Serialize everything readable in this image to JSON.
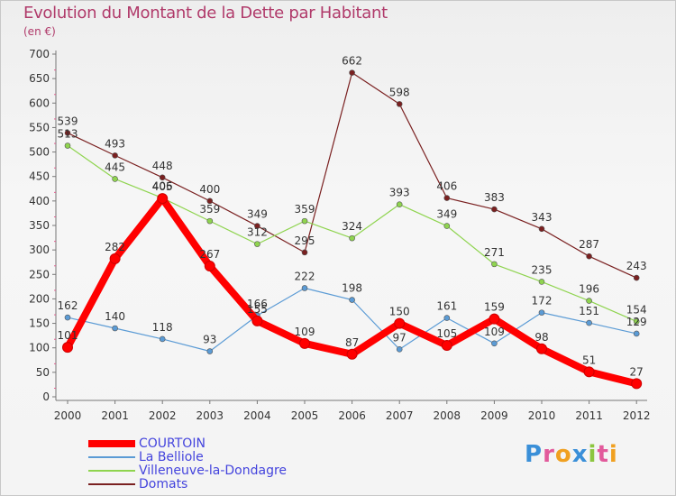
{
  "chart_data": {
    "type": "line",
    "title": "Evolution du Montant de la Dette par Habitant",
    "subtitle": "(en €)",
    "categories": [
      "2000",
      "2001",
      "2002",
      "2003",
      "2004",
      "2005",
      "2006",
      "2007",
      "2008",
      "2009",
      "2010",
      "2011",
      "2012"
    ],
    "ylim": [
      0,
      700
    ],
    "yticks": [
      0,
      50,
      100,
      150,
      200,
      250,
      300,
      350,
      400,
      450,
      500,
      550,
      600,
      650,
      700
    ],
    "grid": false,
    "legend_position": "bottom-left",
    "series": [
      {
        "name": "COURTOIN",
        "color": "#ff0000",
        "values": [
          101,
          282,
          405,
          267,
          155,
          109,
          87,
          150,
          105,
          159,
          98,
          51,
          27
        ]
      },
      {
        "name": "La Belliole",
        "color": "#5b9bd5",
        "values": [
          162,
          140,
          118,
          93,
          166,
          222,
          198,
          97,
          161,
          109,
          172,
          151,
          129
        ]
      },
      {
        "name": "Villeneuve-la-Dondagre",
        "color": "#8fd44f",
        "values": [
          513,
          445,
          406,
          359,
          312,
          359,
          324,
          393,
          349,
          271,
          235,
          196,
          154
        ]
      },
      {
        "name": "Domats",
        "color": "#7a2020",
        "values": [
          539,
          493,
          448,
          400,
          349,
          295,
          662,
          598,
          406,
          383,
          343,
          287,
          243
        ]
      }
    ]
  },
  "logo": {
    "text": "Proxiti"
  }
}
